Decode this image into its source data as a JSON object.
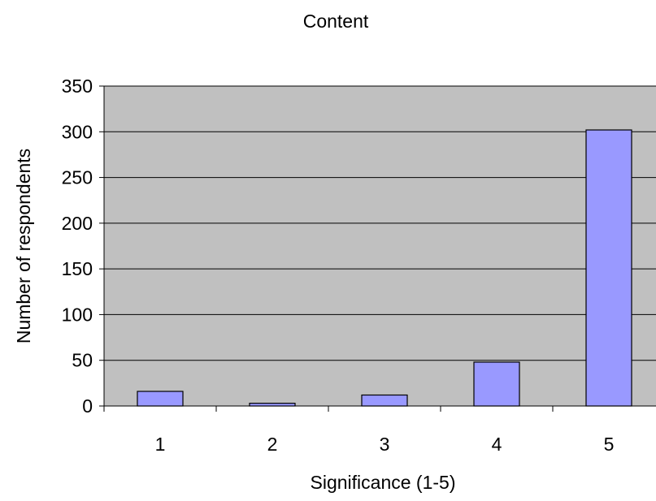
{
  "chart_data": {
    "type": "bar",
    "title": "Content",
    "xlabel": "Significance (1-5)",
    "ylabel": "Number of respondents",
    "categories": [
      "1",
      "2",
      "3",
      "4",
      "5"
    ],
    "values": [
      16,
      3,
      12,
      48,
      302
    ],
    "ylim": [
      0,
      350
    ],
    "yticks": [
      0,
      50,
      100,
      150,
      200,
      250,
      300,
      350
    ],
    "grid": true,
    "legend": "none",
    "colors": {
      "bar_fill": "#9999ff",
      "bar_stroke": "#000000",
      "plot_background": "#c0c0c0",
      "gridline": "#000000"
    }
  }
}
